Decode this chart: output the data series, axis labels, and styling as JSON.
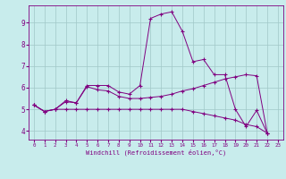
{
  "xlabel": "Windchill (Refroidissement éolien,°C)",
  "bg_color": "#c8ecec",
  "line_color": "#800080",
  "grid_color": "#a0c8c8",
  "xlim": [
    -0.5,
    23.5
  ],
  "ylim": [
    3.6,
    9.8
  ],
  "yticks": [
    4,
    5,
    6,
    7,
    8,
    9
  ],
  "xticks": [
    0,
    1,
    2,
    3,
    4,
    5,
    6,
    7,
    8,
    9,
    10,
    11,
    12,
    13,
    14,
    15,
    16,
    17,
    18,
    19,
    20,
    21,
    22,
    23
  ],
  "x_data": [
    0,
    1,
    2,
    3,
    4,
    5,
    6,
    7,
    8,
    9,
    10,
    11,
    12,
    13,
    14,
    15,
    16,
    17,
    18,
    19,
    20,
    21,
    22,
    23
  ],
  "series": [
    [
      5.2,
      4.9,
      5.0,
      5.4,
      5.3,
      6.1,
      6.1,
      6.1,
      5.8,
      5.7,
      6.1,
      9.2,
      9.4,
      9.5,
      8.6,
      7.2,
      7.3,
      6.6,
      6.6,
      5.0,
      4.2,
      4.95,
      3.9,
      null
    ],
    [
      5.2,
      4.9,
      5.0,
      5.0,
      5.0,
      5.0,
      5.0,
      5.0,
      5.0,
      5.0,
      5.0,
      5.0,
      5.0,
      5.0,
      5.0,
      4.9,
      4.8,
      4.7,
      4.6,
      4.5,
      4.3,
      4.2,
      3.9,
      null
    ],
    [
      5.2,
      4.9,
      5.0,
      5.35,
      5.3,
      6.05,
      5.9,
      5.85,
      5.6,
      5.5,
      5.5,
      5.55,
      5.6,
      5.7,
      5.85,
      5.95,
      6.1,
      6.25,
      6.4,
      6.5,
      6.6,
      6.55,
      3.9,
      null
    ]
  ]
}
